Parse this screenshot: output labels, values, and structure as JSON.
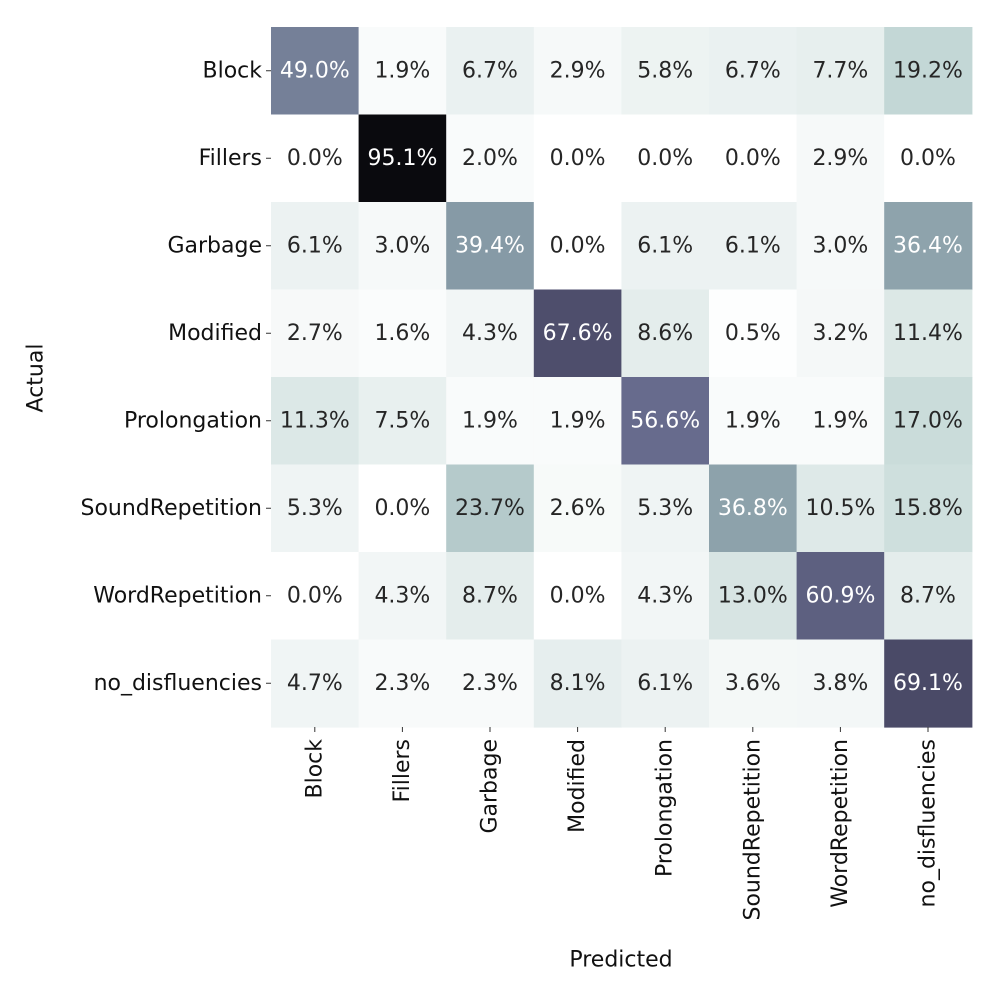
{
  "chart_data": {
    "type": "heatmap",
    "xlabel": "Predicted",
    "ylabel": "Actual",
    "x_categories": [
      "Block",
      "Fillers",
      "Garbage",
      "Modified",
      "Prolongation",
      "SoundRepetition",
      "WordRepetition",
      "no_disfluencies"
    ],
    "y_categories": [
      "Block",
      "Fillers",
      "Garbage",
      "Modified",
      "Prolongation",
      "SoundRepetition",
      "WordRepetition",
      "no_disfluencies"
    ],
    "values": [
      [
        49.0,
        1.9,
        6.7,
        2.9,
        5.8,
        6.7,
        7.7,
        19.2
      ],
      [
        0.0,
        95.1,
        2.0,
        0.0,
        0.0,
        0.0,
        2.9,
        0.0
      ],
      [
        6.1,
        3.0,
        39.4,
        0.0,
        6.1,
        6.1,
        3.0,
        36.4
      ],
      [
        2.7,
        1.6,
        4.3,
        67.6,
        8.6,
        0.5,
        3.2,
        11.4
      ],
      [
        11.3,
        7.5,
        1.9,
        1.9,
        56.6,
        1.9,
        1.9,
        17.0
      ],
      [
        5.3,
        0.0,
        23.7,
        2.6,
        5.3,
        36.8,
        10.5,
        15.8
      ],
      [
        0.0,
        4.3,
        8.7,
        0.0,
        4.3,
        13.0,
        60.9,
        8.7
      ],
      [
        4.7,
        2.3,
        2.3,
        8.1,
        6.1,
        3.6,
        3.8,
        69.1
      ]
    ],
    "value_format": "percent_1dp",
    "colorbar": false,
    "grid": false
  }
}
